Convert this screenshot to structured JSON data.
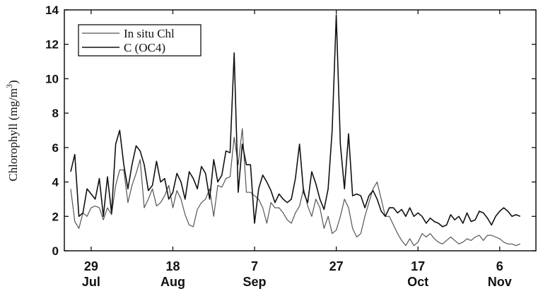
{
  "chart_data": {
    "type": "line",
    "ylabel": "Chlorophyll (mg/m",
    "ylabel_sup": "3",
    "ylabel_close": ")",
    "ylim": [
      0,
      14
    ],
    "yticks": [
      "0",
      "2",
      "4",
      "6",
      "8",
      "10",
      "12",
      "14"
    ],
    "xlim": [
      0,
      113
    ],
    "xticks": [
      {
        "day": "29",
        "month": "Jul",
        "at": 5
      },
      {
        "day": "18",
        "month": "Aug",
        "at": 25
      },
      {
        "day": "7",
        "month": "Sep",
        "at": 45
      },
      {
        "day": "27",
        "month": "",
        "at": 65
      },
      {
        "day": "17",
        "month": "Oct",
        "at": 85
      },
      {
        "day": "6",
        "month": "Nov",
        "at": 105
      }
    ],
    "legend_position": "top-left",
    "grid": false,
    "series": [
      {
        "name": "In situ Chl",
        "color": "#555555",
        "x": [
          0,
          1,
          2,
          3,
          4,
          5,
          6,
          7,
          8,
          9,
          10,
          11,
          12,
          13,
          14,
          15,
          16,
          17,
          18,
          19,
          20,
          21,
          22,
          23,
          24,
          25,
          26,
          27,
          28,
          29,
          30,
          31,
          32,
          33,
          34,
          35,
          36,
          37,
          38,
          39,
          40,
          41,
          42,
          43,
          44,
          45,
          46,
          47,
          48,
          49,
          50,
          51,
          52,
          53,
          54,
          55,
          56,
          57,
          58,
          59,
          60,
          61,
          62,
          63,
          64,
          65,
          66,
          67,
          68,
          69,
          70,
          71,
          72,
          73,
          74,
          75,
          76,
          77,
          78,
          79,
          80,
          81,
          82,
          83,
          84,
          85,
          86,
          87,
          88,
          89,
          90,
          91,
          92,
          93,
          94,
          95,
          96,
          97,
          98,
          99,
          100,
          101,
          102,
          103,
          104,
          105,
          106,
          107,
          108,
          109,
          110
        ],
        "y": [
          3.6,
          1.7,
          1.3,
          2.2,
          2.0,
          2.5,
          2.6,
          2.5,
          1.8,
          2.5,
          2.1,
          3.8,
          4.7,
          4.7,
          2.8,
          3.8,
          4.5,
          5.3,
          2.5,
          3.0,
          3.6,
          2.6,
          2.8,
          3.2,
          3.8,
          2.5,
          3.5,
          3.0,
          2.1,
          1.5,
          1.4,
          2.4,
          2.8,
          3.0,
          3.6,
          2.0,
          3.8,
          3.7,
          4.2,
          4.3,
          6.6,
          5.0,
          7.1,
          3.4,
          3.4,
          3.2,
          3.0,
          2.5,
          1.6,
          2.8,
          2.5,
          2.5,
          2.2,
          1.8,
          1.6,
          2.2,
          2.6,
          3.6,
          2.6,
          2.0,
          3.0,
          2.5,
          1.3,
          2.0,
          1.0,
          1.2,
          2.0,
          3.0,
          2.5,
          1.3,
          0.8,
          1.0,
          2.0,
          2.8,
          3.6,
          4.0,
          3.0,
          2.0,
          2.0,
          1.5,
          1.0,
          0.6,
          0.3,
          0.7,
          0.3,
          0.5,
          1.0,
          0.8,
          1.0,
          0.7,
          0.5,
          0.4,
          0.6,
          0.8,
          0.6,
          0.4,
          0.5,
          0.7,
          0.6,
          0.8,
          0.9,
          0.6,
          0.9,
          0.9,
          0.8,
          0.7,
          0.5,
          0.4,
          0.4,
          0.3,
          0.4
        ]
      },
      {
        "name": "C (OC4)",
        "color": "#111111",
        "x": [
          0,
          1,
          2,
          3,
          4,
          5,
          6,
          7,
          8,
          9,
          10,
          11,
          12,
          13,
          14,
          15,
          16,
          17,
          18,
          19,
          20,
          21,
          22,
          23,
          24,
          25,
          26,
          27,
          28,
          29,
          30,
          31,
          32,
          33,
          34,
          35,
          36,
          37,
          38,
          39,
          40,
          41,
          42,
          43,
          44,
          45,
          46,
          47,
          48,
          49,
          50,
          51,
          52,
          53,
          54,
          55,
          56,
          57,
          58,
          59,
          60,
          61,
          62,
          63,
          64,
          65,
          66,
          67,
          68,
          69,
          70,
          71,
          72,
          73,
          74,
          75,
          76,
          77,
          78,
          79,
          80,
          81,
          82,
          83,
          84,
          85,
          86,
          87,
          88,
          89,
          90,
          91,
          92,
          93,
          94,
          95,
          96,
          97,
          98,
          99,
          100,
          101,
          102,
          103,
          104,
          105,
          106,
          107,
          108,
          109,
          110
        ],
        "y": [
          4.6,
          5.6,
          2.0,
          2.2,
          3.6,
          3.3,
          3.0,
          4.2,
          2.0,
          4.3,
          2.2,
          6.2,
          7.0,
          5.0,
          3.6,
          5.0,
          6.1,
          5.8,
          5.0,
          3.5,
          3.8,
          5.2,
          4.0,
          4.2,
          3.0,
          3.4,
          4.5,
          4.0,
          3.0,
          4.6,
          4.2,
          3.6,
          4.9,
          4.5,
          3.0,
          5.3,
          4.0,
          4.4,
          5.8,
          5.7,
          11.5,
          3.4,
          6.2,
          5.0,
          5.0,
          1.6,
          3.6,
          4.4,
          4.0,
          3.5,
          2.8,
          3.3,
          3.0,
          2.8,
          3.0,
          4.2,
          6.2,
          3.4,
          2.8,
          4.6,
          3.9,
          3.0,
          2.4,
          3.6,
          7.0,
          13.7,
          6.2,
          3.6,
          6.8,
          3.2,
          3.3,
          3.2,
          2.5,
          3.2,
          3.5,
          3.0,
          2.3,
          2.0,
          2.5,
          2.5,
          2.2,
          2.4,
          2.0,
          2.5,
          2.0,
          2.2,
          2.0,
          1.6,
          1.9,
          1.7,
          1.6,
          1.4,
          1.5,
          2.1,
          1.8,
          2.0,
          1.6,
          2.2,
          1.7,
          1.8,
          2.3,
          2.2,
          1.9,
          1.5,
          2.0,
          2.3,
          2.5,
          2.3,
          2.0,
          2.1,
          2.0
        ]
      }
    ]
  }
}
